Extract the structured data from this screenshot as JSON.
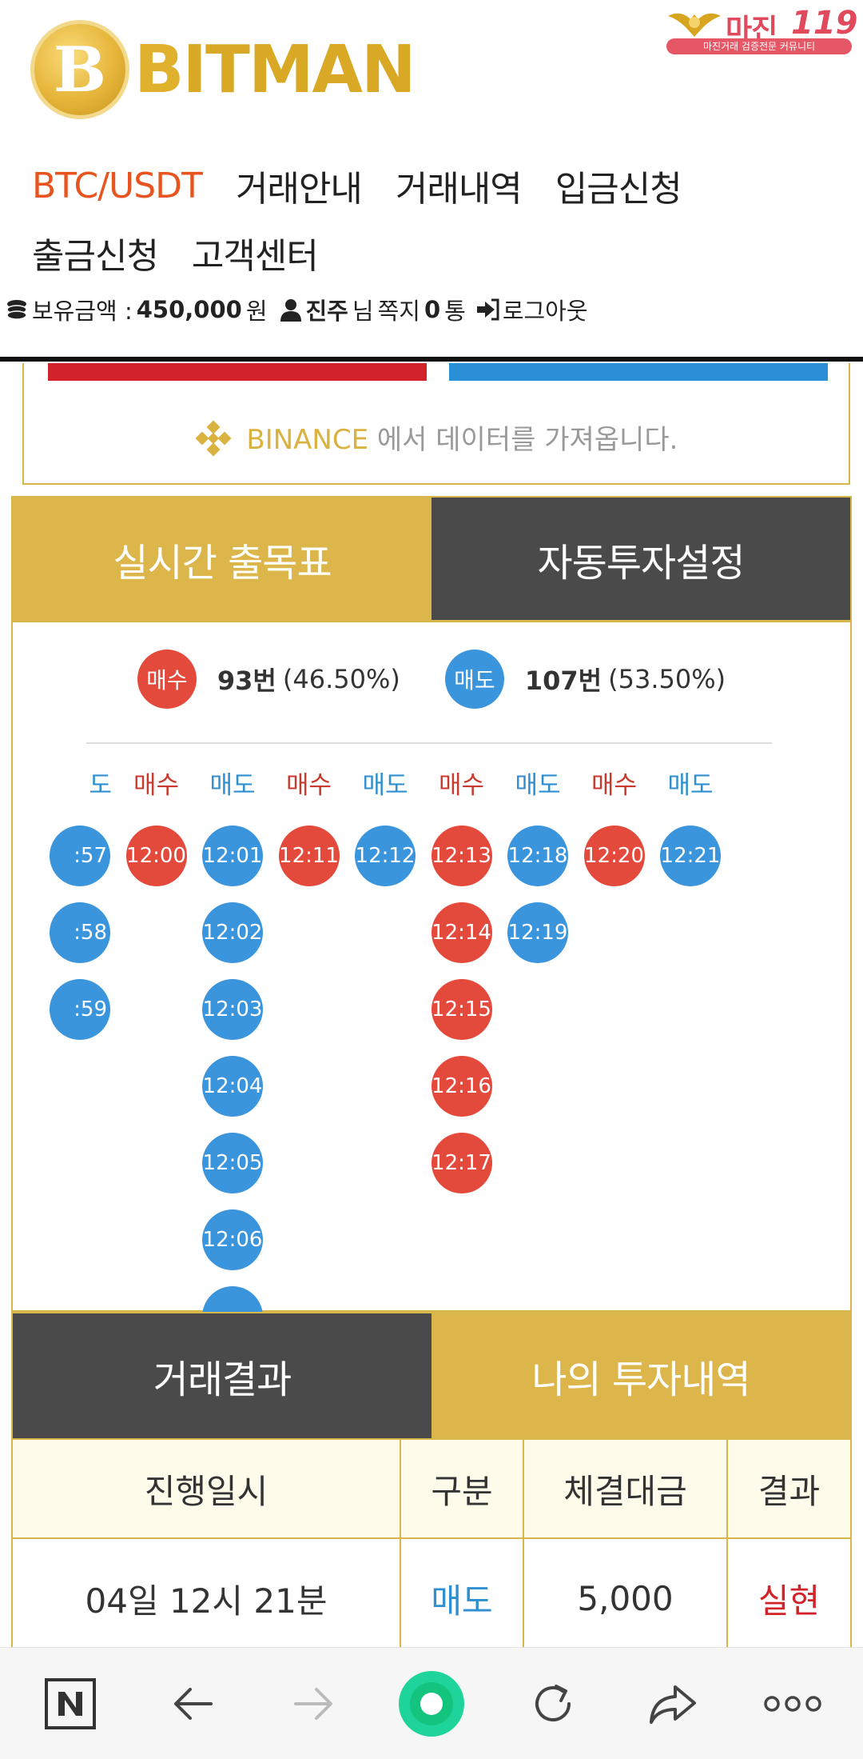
{
  "brand": {
    "coin_glyph": "B",
    "name_accent": "B",
    "name_rest": "ITMAN"
  },
  "partner": {
    "name": "마진",
    "number": "119",
    "tagline": "마진거래 검증전문 커뮤니티"
  },
  "nav": {
    "row1": [
      "BTC/USDT",
      "거래안내",
      "거래내역",
      "입금신청"
    ],
    "row2": [
      "출금신청",
      "고객센터"
    ],
    "active": "BTC/USDT"
  },
  "user": {
    "balance_label": "보유금액 :",
    "balance_value": "450,000",
    "balance_unit": "원",
    "name": "진주",
    "honorific": "님",
    "messages_label": "쪽지",
    "messages_count": "0",
    "messages_unit": "통",
    "logout": "로그아웃"
  },
  "binance": {
    "name": "BINANCE",
    "text": "에서 데이터를 가져옵니다."
  },
  "tabs_top": {
    "left": "실시간 출목표",
    "right": "자동투자설정"
  },
  "stats": {
    "buy_label": "매수",
    "buy_count": "93번",
    "buy_pct": "(46.50%)",
    "sell_label": "매도",
    "sell_count": "107번",
    "sell_pct": "(53.50%)"
  },
  "columns": [
    {
      "head": "도",
      "side": "sell",
      "times": [
        ":57",
        ":58",
        ":59"
      ]
    },
    {
      "head": "매수",
      "side": "buy",
      "times": [
        "12:00"
      ]
    },
    {
      "head": "매도",
      "side": "sell",
      "times": [
        "12:01",
        "12:02",
        "12:03",
        "12:04",
        "12:05",
        "12:06",
        ""
      ]
    },
    {
      "head": "매수",
      "side": "buy",
      "times": [
        "12:11"
      ]
    },
    {
      "head": "매도",
      "side": "sell",
      "times": [
        "12:12"
      ]
    },
    {
      "head": "매수",
      "side": "buy",
      "times": [
        "12:13",
        "12:14",
        "12:15",
        "12:16",
        "12:17"
      ]
    },
    {
      "head": "매도",
      "side": "sell",
      "times": [
        "12:18",
        "12:19"
      ]
    },
    {
      "head": "매수",
      "side": "buy",
      "times": [
        "12:20"
      ]
    },
    {
      "head": "매도",
      "side": "sell",
      "times": [
        "12:21"
      ]
    }
  ],
  "tabs_bottom": {
    "left": "거래결과",
    "right": "나의 투자내역"
  },
  "table": {
    "headers": [
      "진행일시",
      "구분",
      "체결대금",
      "결과"
    ],
    "rows": [
      {
        "date": "04일 12시 21분",
        "type": "매도",
        "amount": "5,000",
        "result": "실현"
      }
    ]
  },
  "colors": {
    "buy": "#e34a3c",
    "sell": "#3a95dc",
    "gold": "#dcb64a",
    "dark": "#4a4a4a",
    "accent": "#e8541f"
  },
  "browser_icons": [
    "naver-n-icon",
    "back-arrow-icon",
    "forward-arrow-icon",
    "home-circle-icon",
    "refresh-icon",
    "share-icon",
    "more-dots-icon"
  ]
}
